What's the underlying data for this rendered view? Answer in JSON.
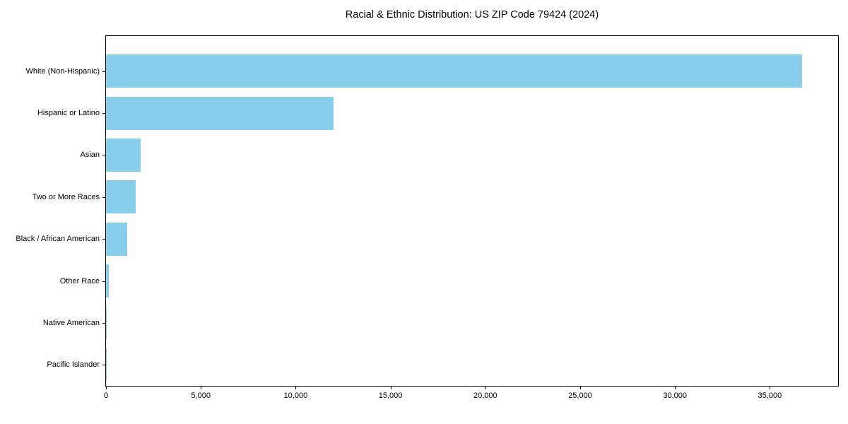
{
  "title": "Racial & Ethnic Distribution: US ZIP Code 79424 (2024)",
  "chart_data": {
    "type": "bar",
    "orientation": "horizontal",
    "title": "Racial & Ethnic Distribution: US ZIP Code 79424 (2024)",
    "xlabel": "",
    "ylabel": "",
    "categories": [
      "White (Non-Hispanic)",
      "Hispanic or Latino",
      "Asian",
      "Two or More Races",
      "Black / African American",
      "Other Race",
      "Native American",
      "Pacific Islander"
    ],
    "values": [
      36700,
      12000,
      1830,
      1550,
      1120,
      150,
      40,
      15
    ],
    "xlim": [
      0,
      38600
    ],
    "x_ticks": [
      0,
      5000,
      10000,
      15000,
      20000,
      25000,
      30000,
      35000
    ],
    "x_tick_labels": [
      "0",
      "5,000",
      "10,000",
      "15,000",
      "20,000",
      "25,000",
      "30,000",
      "35,000"
    ],
    "grid": false,
    "legend": "none",
    "bar_color": "#87CEEB"
  },
  "colors": {
    "bar": "#87CEEB",
    "axis": "#000000",
    "text": "#000000",
    "background": "#FFFFFF"
  }
}
